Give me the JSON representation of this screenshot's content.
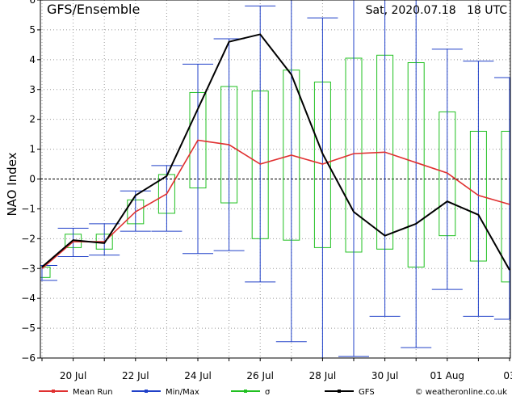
{
  "chart_data": {
    "type": "line",
    "title": "GFS/Ensemble",
    "run_label": "Sat, 2020.07.18   18 UTC",
    "ylabel": "NAO Index",
    "xlabel": "",
    "ylim": [
      -6,
      6
    ],
    "yticks": [
      -6,
      -5,
      -4,
      -3,
      -2,
      -1,
      0,
      1,
      2,
      3,
      4,
      5,
      6
    ],
    "xlim": [
      0,
      15.3
    ],
    "xticks": [
      {
        "x": 1,
        "label": "20 Jul"
      },
      {
        "x": 3,
        "label": "22 Jul"
      },
      {
        "x": 5,
        "label": "24 Jul"
      },
      {
        "x": 7,
        "label": "26 Jul"
      },
      {
        "x": 9,
        "label": "28 Jul"
      },
      {
        "x": 11,
        "label": "30 Jul"
      },
      {
        "x": 13,
        "label": "01 Aug"
      },
      {
        "x": 15,
        "label": "03"
      }
    ],
    "grid": true,
    "x": [
      0,
      1,
      2,
      3,
      4,
      5,
      6,
      7,
      8,
      9,
      10,
      11,
      12,
      13,
      14,
      15,
      16
    ],
    "series": [
      {
        "name": "Mean Run",
        "color": "#e03030",
        "values": [
          -3.0,
          -2.1,
          -2.1,
          -1.1,
          -0.5,
          1.3,
          1.15,
          0.5,
          0.8,
          0.5,
          0.85,
          0.9,
          0.55,
          0.2,
          -0.55,
          -0.85,
          null
        ]
      },
      {
        "name": "GFS",
        "color": "#000000",
        "values": [
          -2.95,
          -2.05,
          -2.15,
          -0.55,
          0.1,
          2.35,
          4.6,
          4.85,
          3.5,
          0.85,
          -1.1,
          -1.9,
          -1.5,
          -0.75,
          -1.2,
          -3.05,
          null
        ]
      }
    ],
    "minmax": [
      {
        "x": 0,
        "min": -3.4,
        "max": -2.9
      },
      {
        "x": 1,
        "min": -2.6,
        "max": -1.65
      },
      {
        "x": 2,
        "min": -2.55,
        "max": -1.5
      },
      {
        "x": 3,
        "min": -1.75,
        "max": -0.4
      },
      {
        "x": 4,
        "min": -1.75,
        "max": 0.45
      },
      {
        "x": 5,
        "min": -2.5,
        "max": 3.85
      },
      {
        "x": 6,
        "min": -2.4,
        "max": 4.7
      },
      {
        "x": 7,
        "min": -3.45,
        "max": 5.8
      },
      {
        "x": 8,
        "min": -5.45,
        "max": 6.0
      },
      {
        "x": 9,
        "min": -6.0,
        "max": 5.4
      },
      {
        "x": 10,
        "min": -5.95,
        "max": 6.0
      },
      {
        "x": 11,
        "min": -4.6,
        "max": 6.0
      },
      {
        "x": 12,
        "min": -5.65,
        "max": 6.0
      },
      {
        "x": 13,
        "min": -3.7,
        "max": 4.35
      },
      {
        "x": 14,
        "min": -4.6,
        "max": 3.95
      },
      {
        "x": 15,
        "min": -4.7,
        "max": 3.4
      }
    ],
    "sigma": [
      {
        "x": 0,
        "low": -3.3,
        "high": -2.95
      },
      {
        "x": 1,
        "low": -2.3,
        "high": -1.85
      },
      {
        "x": 2,
        "low": -2.35,
        "high": -1.85
      },
      {
        "x": 3,
        "low": -1.5,
        "high": -0.7
      },
      {
        "x": 4,
        "low": -1.15,
        "high": 0.15
      },
      {
        "x": 5,
        "low": -0.3,
        "high": 2.9
      },
      {
        "x": 6,
        "low": -0.8,
        "high": 3.1
      },
      {
        "x": 7,
        "low": -2.0,
        "high": 2.95
      },
      {
        "x": 8,
        "low": -2.05,
        "high": 3.65
      },
      {
        "x": 9,
        "low": -2.3,
        "high": 3.25
      },
      {
        "x": 10,
        "low": -2.45,
        "high": 4.05
      },
      {
        "x": 11,
        "low": -2.35,
        "high": 4.15
      },
      {
        "x": 12,
        "low": -2.95,
        "high": 3.9
      },
      {
        "x": 13,
        "low": -1.9,
        "high": 2.25
      },
      {
        "x": 14,
        "low": -2.75,
        "high": 1.6
      },
      {
        "x": 15,
        "low": -3.45,
        "high": 1.6
      }
    ],
    "colors": {
      "minmax": "#2040c8",
      "sigma": "#20c020"
    },
    "legend": {
      "placement": "bottom",
      "items": [
        {
          "label": "Mean Run",
          "color": "#e03030"
        },
        {
          "label": "Min/Max",
          "color": "#2040c8"
        },
        {
          "label": "σ",
          "color": "#20c020"
        },
        {
          "label": "GFS",
          "color": "#000000"
        }
      ]
    },
    "credit": "© weatheronline.co.uk"
  }
}
